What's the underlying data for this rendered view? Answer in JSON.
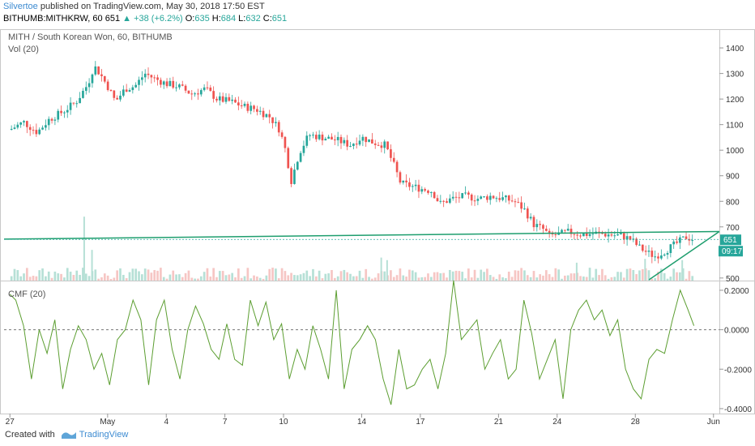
{
  "header": {
    "author": "Silvertoe",
    "published_text": "published on TradingView.com, May 30, 2018 17:50 EST",
    "symbol": "BITHUMB:MITHKRW, 60",
    "last": "651",
    "change": "+38 (+6.2%)",
    "o_label": "O:",
    "o_value": "635",
    "h_label": "H:",
    "h_value": "684",
    "l_label": "L:",
    "l_value": "632",
    "c_label": "C:",
    "c_value": "651"
  },
  "pane_main": {
    "title": "MITH / South Korean Won, 60, BITHUMB",
    "vol_label": "Vol (20)"
  },
  "pane_cmf": {
    "title": "CMF (20)"
  },
  "price_badge": "651",
  "time_badge": "09:17",
  "footer": {
    "created_with": "Created with",
    "brand": "TradingView"
  },
  "colors": {
    "up": "#26a69a",
    "down": "#ef5350",
    "cmf": "#5c9e31",
    "trend": "#1e9e6e"
  },
  "chart_data": [
    {
      "type": "candlestick",
      "title": "MITH / South Korean Won, 60, BITHUMB",
      "x_ticks": [
        "27",
        "May",
        "4",
        "7",
        "10",
        "14",
        "17",
        "21",
        "24",
        "28",
        "Jun"
      ],
      "x_tick_day": [
        -4,
        1,
        4,
        7,
        10,
        14,
        17,
        21,
        24,
        28,
        32
      ],
      "y_ticks": [
        500,
        600,
        700,
        800,
        900,
        1000,
        1100,
        1200,
        1300,
        1400
      ],
      "ylim": [
        490,
        1470
      ],
      "xlim": [
        -4.3,
        32.3
      ],
      "close_path": [
        [
          -4,
          1080
        ],
        [
          -3.3,
          1110
        ],
        [
          -2.6,
          1070
        ],
        [
          -2,
          1120
        ],
        [
          -1.3,
          1150
        ],
        [
          -0.6,
          1190
        ],
        [
          0,
          1260
        ],
        [
          0.3,
          1330
        ],
        [
          0.6,
          1300
        ],
        [
          1,
          1250
        ],
        [
          1.4,
          1190
        ],
        [
          1.9,
          1240
        ],
        [
          2.4,
          1250
        ],
        [
          2.9,
          1300
        ],
        [
          3.4,
          1280
        ],
        [
          4,
          1260
        ],
        [
          4.6,
          1250
        ],
        [
          5.3,
          1220
        ],
        [
          6,
          1240
        ],
        [
          6.6,
          1200
        ],
        [
          7.3,
          1190
        ],
        [
          8,
          1170
        ],
        [
          8.6,
          1160
        ],
        [
          9.3,
          1130
        ],
        [
          9.8,
          1080
        ],
        [
          10.1,
          1000
        ],
        [
          10.4,
          880
        ],
        [
          10.8,
          990
        ],
        [
          11.3,
          1060
        ],
        [
          12,
          1050
        ],
        [
          12.7,
          1040
        ],
        [
          13.4,
          1020
        ],
        [
          14,
          1050
        ],
        [
          14.6,
          1030
        ],
        [
          15.2,
          1020
        ],
        [
          15.6,
          950
        ],
        [
          16,
          870
        ],
        [
          16.5,
          860
        ],
        [
          17,
          850
        ],
        [
          17.6,
          840
        ],
        [
          18,
          790
        ],
        [
          18.6,
          810
        ],
        [
          19.3,
          820
        ],
        [
          20,
          810
        ],
        [
          20.6,
          820
        ],
        [
          21.3,
          810
        ],
        [
          21.8,
          800
        ],
        [
          22.3,
          770
        ],
        [
          22.8,
          710
        ],
        [
          23.3,
          690
        ],
        [
          23.6,
          665
        ],
        [
          24,
          670
        ],
        [
          24.6,
          680
        ],
        [
          25.3,
          670
        ],
        [
          26,
          675
        ],
        [
          26.6,
          670
        ],
        [
          27.3,
          665
        ],
        [
          27.8,
          650
        ],
        [
          28.2,
          620
        ],
        [
          28.6,
          600
        ],
        [
          29,
          585
        ],
        [
          29.4,
          600
        ],
        [
          29.8,
          620
        ],
        [
          30.2,
          640
        ],
        [
          30.6,
          660
        ],
        [
          31,
          651
        ]
      ],
      "volume_spikes": [
        [
          -0.2,
          740
        ],
        [
          0.2,
          610
        ],
        [
          15,
          580
        ],
        [
          15.3,
          570
        ],
        [
          25,
          560
        ],
        [
          28.5,
          575
        ],
        [
          30.4,
          570
        ]
      ],
      "drawings": {
        "resistance_line": [
          [
            -4.3,
            652
          ],
          [
            32.3,
            682
          ]
        ],
        "support_line": [
          [
            28.7,
            493
          ],
          [
            32.3,
            682
          ]
        ]
      },
      "last_price": 651
    },
    {
      "type": "line",
      "title": "CMF (20)",
      "series": [
        {
          "values": [
            [
              -4,
              0.18
            ],
            [
              -3.7,
              0.15
            ],
            [
              -3.3,
              0.02
            ],
            [
              -2.9,
              -0.25
            ],
            [
              -2.5,
              0
            ],
            [
              -2.1,
              -0.12
            ],
            [
              -1.7,
              0.05
            ],
            [
              -1.3,
              -0.3
            ],
            [
              -0.9,
              -0.1
            ],
            [
              -0.5,
              0.02
            ],
            [
              -0.1,
              -0.05
            ],
            [
              0.3,
              -0.2
            ],
            [
              0.7,
              -0.12
            ],
            [
              1.1,
              -0.28
            ],
            [
              1.5,
              -0.05
            ],
            [
              1.9,
              0
            ],
            [
              2.3,
              0.15
            ],
            [
              2.7,
              0.05
            ],
            [
              3.1,
              -0.28
            ],
            [
              3.5,
              0.05
            ],
            [
              3.9,
              0.15
            ],
            [
              4.3,
              -0.1
            ],
            [
              4.7,
              -0.25
            ],
            [
              5.1,
              0
            ],
            [
              5.5,
              0.12
            ],
            [
              5.9,
              0.03
            ],
            [
              6.3,
              -0.1
            ],
            [
              6.7,
              -0.15
            ],
            [
              7.1,
              0.03
            ],
            [
              7.5,
              -0.15
            ],
            [
              7.9,
              -0.18
            ],
            [
              8.3,
              0.15
            ],
            [
              8.7,
              0.02
            ],
            [
              9.1,
              0.14
            ],
            [
              9.5,
              -0.05
            ],
            [
              9.9,
              0.03
            ],
            [
              10.3,
              -0.25
            ],
            [
              10.7,
              -0.1
            ],
            [
              11.1,
              -0.2
            ],
            [
              11.5,
              0.02
            ],
            [
              11.9,
              -0.1
            ],
            [
              12.3,
              -0.25
            ],
            [
              12.7,
              0.2
            ],
            [
              13.1,
              -0.3
            ],
            [
              13.5,
              -0.1
            ],
            [
              13.9,
              -0.05
            ],
            [
              14.3,
              0.02
            ],
            [
              14.7,
              -0.05
            ],
            [
              15.1,
              -0.25
            ],
            [
              15.5,
              -0.38
            ],
            [
              15.9,
              -0.1
            ],
            [
              16.3,
              -0.3
            ],
            [
              16.7,
              -0.28
            ],
            [
              17.1,
              -0.2
            ],
            [
              17.5,
              -0.15
            ],
            [
              17.9,
              -0.3
            ],
            [
              18.3,
              -0.12
            ],
            [
              18.7,
              0.25
            ],
            [
              19.1,
              -0.05
            ],
            [
              19.5,
              0
            ],
            [
              19.9,
              0.05
            ],
            [
              20.3,
              -0.2
            ],
            [
              20.7,
              -0.12
            ],
            [
              21.1,
              -0.05
            ],
            [
              21.5,
              -0.25
            ],
            [
              21.9,
              -0.2
            ],
            [
              22.3,
              0.15
            ],
            [
              22.7,
              -0.02
            ],
            [
              23.1,
              -0.25
            ],
            [
              23.5,
              -0.15
            ],
            [
              23.9,
              -0.05
            ],
            [
              24.3,
              -0.35
            ],
            [
              24.7,
              0
            ],
            [
              25.1,
              0.1
            ],
            [
              25.5,
              0.15
            ],
            [
              25.9,
              0.05
            ],
            [
              26.3,
              0.1
            ],
            [
              26.7,
              -0.03
            ],
            [
              27.1,
              0.05
            ],
            [
              27.5,
              -0.2
            ],
            [
              27.9,
              -0.3
            ],
            [
              28.3,
              -0.35
            ],
            [
              28.7,
              -0.15
            ],
            [
              29.1,
              -0.1
            ],
            [
              29.5,
              -0.12
            ],
            [
              29.9,
              0.05
            ],
            [
              30.3,
              0.2
            ],
            [
              30.7,
              0.1
            ],
            [
              31,
              0.02
            ]
          ]
        }
      ],
      "y_ticks": [
        -0.4,
        -0.2,
        0,
        0.2
      ],
      "y_tick_labels": [
        "-0.4000",
        "-0.2000",
        "0.0000",
        "0.2000"
      ],
      "ylim": [
        -0.425,
        0.245
      ]
    }
  ]
}
